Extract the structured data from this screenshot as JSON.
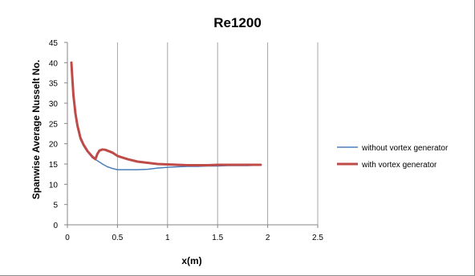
{
  "chart_data": {
    "type": "line",
    "title": "Re1200",
    "xlabel": "x(m)",
    "ylabel": "Spanwise Average Nusselt No.",
    "xlim": [
      0,
      2.5
    ],
    "ylim": [
      0,
      45
    ],
    "xticks": [
      "0",
      "0.5",
      "1",
      "1.5",
      "2",
      "2.5"
    ],
    "yticks": [
      "0",
      "5",
      "10",
      "15",
      "20",
      "25",
      "30",
      "35",
      "40",
      "45"
    ],
    "grid": "vertical",
    "legend_position": "right",
    "series": [
      {
        "name": "without vortex generator",
        "color": "#4a7ebb",
        "x": [
          0.04,
          0.05,
          0.06,
          0.08,
          0.1,
          0.13,
          0.16,
          0.2,
          0.25,
          0.3,
          0.35,
          0.4,
          0.45,
          0.5,
          0.6,
          0.7,
          0.8,
          0.9,
          1.0,
          1.1,
          1.2,
          1.3,
          1.4,
          1.5,
          1.6,
          1.7,
          1.8,
          1.9,
          1.93
        ],
        "values": [
          40,
          35,
          31,
          27,
          24,
          21,
          19.5,
          18,
          16.5,
          15.8,
          15,
          14.3,
          13.9,
          13.6,
          13.6,
          13.6,
          13.7,
          14.0,
          14.2,
          14.3,
          14.4,
          14.4,
          14.5,
          14.5,
          14.6,
          14.6,
          14.6,
          14.7,
          14.7
        ]
      },
      {
        "name": "with vortex generator",
        "color": "#be4b48",
        "x": [
          0.04,
          0.05,
          0.06,
          0.08,
          0.1,
          0.13,
          0.16,
          0.2,
          0.25,
          0.28,
          0.3,
          0.32,
          0.35,
          0.38,
          0.4,
          0.45,
          0.5,
          0.6,
          0.7,
          0.8,
          0.9,
          1.0,
          1.1,
          1.2,
          1.3,
          1.4,
          1.5,
          1.6,
          1.7,
          1.8,
          1.9,
          1.93
        ],
        "values": [
          40,
          36,
          32,
          27.5,
          24.5,
          21.5,
          19.8,
          18.2,
          16.8,
          16.2,
          17.5,
          18.3,
          18.6,
          18.5,
          18.3,
          17.8,
          17.0,
          16.2,
          15.6,
          15.3,
          15.0,
          14.9,
          14.8,
          14.7,
          14.7,
          14.7,
          14.8,
          14.8,
          14.8,
          14.8,
          14.8,
          14.8
        ]
      }
    ]
  }
}
